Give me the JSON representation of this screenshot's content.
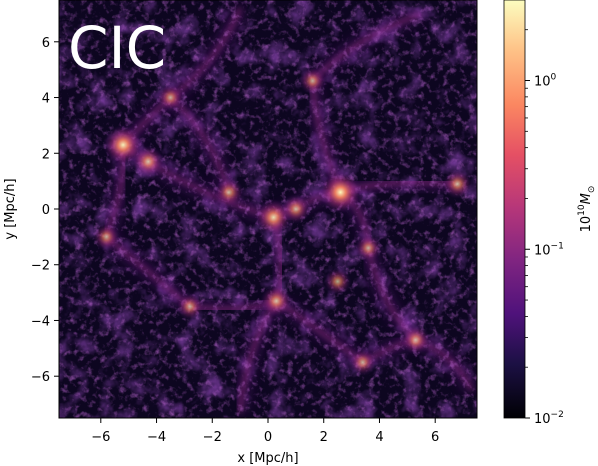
{
  "chart_data": {
    "type": "heatmap",
    "overlay_label": "CIC",
    "xlabel": "x [Mpc/h]",
    "ylabel": "y [Mpc/h]",
    "xlim": [
      -7.5,
      7.5
    ],
    "ylim": [
      -7.5,
      7.5
    ],
    "x_ticks": [
      -6,
      -4,
      -2,
      0,
      2,
      4,
      6
    ],
    "x_tick_labels": [
      "−6",
      "−4",
      "−2",
      "0",
      "2",
      "4",
      "6"
    ],
    "y_ticks": [
      -6,
      -4,
      -2,
      0,
      2,
      4,
      6
    ],
    "y_tick_labels": [
      "−6",
      "−4",
      "−2",
      "0",
      "2",
      "4",
      "6"
    ],
    "colorbar": {
      "label_base": "10",
      "label_exponent": "10",
      "label_unit": "M",
      "label_subscript": "⊙",
      "scale": "log",
      "range": [
        0.01,
        3.0
      ],
      "colormap": "magma",
      "ticks": [
        {
          "value": 1.0,
          "base": "10",
          "exponent": "0"
        },
        {
          "value": 0.1,
          "base": "10",
          "exponent": "−1"
        },
        {
          "value": 0.01,
          "base": "10",
          "exponent": "−2"
        }
      ]
    },
    "bright_regions": [
      {
        "x": -5.2,
        "y": 2.3,
        "v": 1.0
      },
      {
        "x": -4.3,
        "y": 1.7,
        "v": 0.5
      },
      {
        "x": -3.5,
        "y": 4.0,
        "v": 0.3
      },
      {
        "x": -1.4,
        "y": 0.6,
        "v": 0.4
      },
      {
        "x": 0.2,
        "y": -0.3,
        "v": 0.8
      },
      {
        "x": 1.0,
        "y": 0.0,
        "v": 0.4
      },
      {
        "x": 2.6,
        "y": 0.6,
        "v": 1.2
      },
      {
        "x": 2.5,
        "y": -2.6,
        "v": 0.3
      },
      {
        "x": 0.3,
        "y": -3.3,
        "v": 0.5
      },
      {
        "x": 3.6,
        "y": -1.4,
        "v": 0.3
      },
      {
        "x": 6.8,
        "y": 0.9,
        "v": 0.4
      },
      {
        "x": 5.3,
        "y": -4.7,
        "v": 0.4
      },
      {
        "x": 3.4,
        "y": -5.5,
        "v": 0.3
      },
      {
        "x": -2.8,
        "y": -3.5,
        "v": 0.3
      },
      {
        "x": -5.8,
        "y": -1.0,
        "v": 0.3
      },
      {
        "x": 1.6,
        "y": 4.6,
        "v": 0.3
      }
    ],
    "filaments": [
      {
        "from": [
          -5.2,
          2.3
        ],
        "to": [
          0.2,
          -0.3
        ]
      },
      {
        "from": [
          0.2,
          -0.3
        ],
        "to": [
          2.6,
          0.6
        ]
      },
      {
        "from": [
          2.6,
          0.6
        ],
        "to": [
          6.8,
          0.9
        ]
      },
      {
        "from": [
          0.2,
          -0.3
        ],
        "to": [
          0.3,
          -3.3
        ]
      },
      {
        "from": [
          0.3,
          -3.3
        ],
        "to": [
          3.4,
          -5.5
        ]
      },
      {
        "from": [
          3.4,
          -5.5
        ],
        "to": [
          5.3,
          -4.7
        ]
      },
      {
        "from": [
          -3.5,
          4.0
        ],
        "to": [
          -5.2,
          2.3
        ]
      },
      {
        "from": [
          -5.2,
          2.3
        ],
        "to": [
          -5.8,
          -1.0
        ]
      },
      {
        "from": [
          -5.8,
          -1.0
        ],
        "to": [
          -2.8,
          -3.5
        ]
      },
      {
        "from": [
          -2.8,
          -3.5
        ],
        "to": [
          0.3,
          -3.3
        ]
      },
      {
        "from": [
          2.6,
          0.6
        ],
        "to": [
          1.6,
          4.6
        ]
      },
      {
        "from": [
          2.6,
          0.6
        ],
        "to": [
          3.6,
          -1.4
        ]
      },
      {
        "from": [
          3.6,
          -1.4
        ],
        "to": [
          5.3,
          -4.7
        ]
      },
      {
        "from": [
          -1.4,
          0.6
        ],
        "to": [
          -3.5,
          4.0
        ]
      },
      {
        "from": [
          1.6,
          4.6
        ],
        "to": [
          5.5,
          7.0
        ]
      },
      {
        "from": [
          -3.5,
          4.0
        ],
        "to": [
          -1.0,
          7.2
        ]
      },
      {
        "from": [
          0.3,
          -3.3
        ],
        "to": [
          -1.0,
          -7.3
        ]
      },
      {
        "from": [
          5.3,
          -4.7
        ],
        "to": [
          7.3,
          -6.5
        ]
      }
    ]
  }
}
